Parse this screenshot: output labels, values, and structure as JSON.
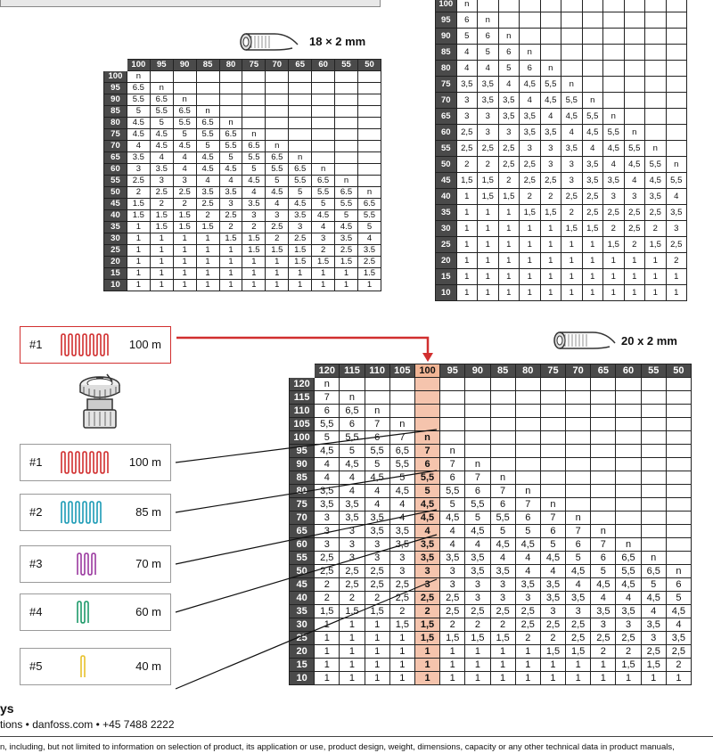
{
  "pipe_small": {
    "label": "18 × 2 mm"
  },
  "pipe_large": {
    "label": "20 x 2 mm"
  },
  "selected_loop": {
    "id": "#1",
    "length": "100 m",
    "color": "#d12f2f"
  },
  "loops": [
    {
      "id": "#1",
      "length": "100 m",
      "color": "#d12f2f"
    },
    {
      "id": "#2",
      "length": "85 m",
      "color": "#1c9bb5"
    },
    {
      "id": "#3",
      "length": "70 m",
      "color": "#9b3aa0"
    },
    {
      "id": "#4",
      "length": "60 m",
      "color": "#1e9a6a"
    },
    {
      "id": "#5",
      "length": "40 m",
      "color": "#e8c12c"
    }
  ],
  "table_a": {
    "header": [
      "",
      "100",
      "95",
      "90",
      "85",
      "80",
      "75",
      "70",
      "65",
      "60",
      "55",
      "50"
    ],
    "rows": [
      [
        "100",
        "n",
        "",
        "",
        "",
        "",
        "",
        "",
        "",
        "",
        "",
        ""
      ],
      [
        "95",
        "6.5",
        "n",
        "",
        "",
        "",
        "",
        "",
        "",
        "",
        "",
        ""
      ],
      [
        "90",
        "5.5",
        "6.5",
        "n",
        "",
        "",
        "",
        "",
        "",
        "",
        "",
        ""
      ],
      [
        "85",
        "5",
        "5.5",
        "6.5",
        "n",
        "",
        "",
        "",
        "",
        "",
        "",
        ""
      ],
      [
        "80",
        "4.5",
        "5",
        "5.5",
        "6.5",
        "n",
        "",
        "",
        "",
        "",
        "",
        ""
      ],
      [
        "75",
        "4.5",
        "4.5",
        "5",
        "5.5",
        "6.5",
        "n",
        "",
        "",
        "",
        "",
        ""
      ],
      [
        "70",
        "4",
        "4.5",
        "4.5",
        "5",
        "5.5",
        "6.5",
        "n",
        "",
        "",
        "",
        ""
      ],
      [
        "65",
        "3.5",
        "4",
        "4",
        "4.5",
        "5",
        "5.5",
        "6.5",
        "n",
        "",
        "",
        ""
      ],
      [
        "60",
        "3",
        "3.5",
        "4",
        "4.5",
        "4.5",
        "5",
        "5.5",
        "6.5",
        "n",
        "",
        ""
      ],
      [
        "55",
        "2.5",
        "3",
        "3",
        "4",
        "4",
        "4.5",
        "5",
        "5.5",
        "6.5",
        "n",
        ""
      ],
      [
        "50",
        "2",
        "2.5",
        "2.5",
        "3.5",
        "3.5",
        "4",
        "4.5",
        "5",
        "5.5",
        "6.5",
        "n"
      ],
      [
        "45",
        "1.5",
        "2",
        "2",
        "2.5",
        "3",
        "3.5",
        "4",
        "4.5",
        "5",
        "5.5",
        "6.5"
      ],
      [
        "40",
        "1.5",
        "1.5",
        "1.5",
        "2",
        "2.5",
        "3",
        "3",
        "3.5",
        "4.5",
        "5",
        "5.5"
      ],
      [
        "35",
        "1",
        "1.5",
        "1.5",
        "1.5",
        "2",
        "2",
        "2.5",
        "3",
        "4",
        "4.5",
        "5"
      ],
      [
        "30",
        "1",
        "1",
        "1",
        "1",
        "1.5",
        "1.5",
        "2",
        "2.5",
        "3",
        "3.5",
        "4"
      ],
      [
        "25",
        "1",
        "1",
        "1",
        "1",
        "1",
        "1.5",
        "1.5",
        "1.5",
        "2",
        "2.5",
        "3.5"
      ],
      [
        "20",
        "1",
        "1",
        "1",
        "1",
        "1",
        "1",
        "1",
        "1.5",
        "1.5",
        "1.5",
        "2.5"
      ],
      [
        "15",
        "1",
        "1",
        "1",
        "1",
        "1",
        "1",
        "1",
        "1",
        "1",
        "1",
        "1.5"
      ],
      [
        "10",
        "1",
        "1",
        "1",
        "1",
        "1",
        "1",
        "1",
        "1",
        "1",
        "1",
        "1"
      ]
    ]
  },
  "table_b": {
    "rows": [
      [
        "100",
        "n",
        "",
        "",
        "",
        "",
        "",
        "",
        "",
        "",
        "",
        ""
      ],
      [
        "95",
        "6",
        "n",
        "",
        "",
        "",
        "",
        "",
        "",
        "",
        "",
        ""
      ],
      [
        "90",
        "5",
        "6",
        "n",
        "",
        "",
        "",
        "",
        "",
        "",
        "",
        ""
      ],
      [
        "85",
        "4",
        "5",
        "6",
        "n",
        "",
        "",
        "",
        "",
        "",
        "",
        ""
      ],
      [
        "80",
        "4",
        "4",
        "5",
        "6",
        "n",
        "",
        "",
        "",
        "",
        "",
        ""
      ],
      [
        "75",
        "3,5",
        "3,5",
        "4",
        "4,5",
        "5,5",
        "n",
        "",
        "",
        "",
        "",
        ""
      ],
      [
        "70",
        "3",
        "3,5",
        "3,5",
        "4",
        "4,5",
        "5,5",
        "n",
        "",
        "",
        "",
        ""
      ],
      [
        "65",
        "3",
        "3",
        "3,5",
        "3,5",
        "4",
        "4,5",
        "5,5",
        "n",
        "",
        "",
        ""
      ],
      [
        "60",
        "2,5",
        "3",
        "3",
        "3,5",
        "3,5",
        "4",
        "4,5",
        "5,5",
        "n",
        "",
        ""
      ],
      [
        "55",
        "2,5",
        "2,5",
        "2,5",
        "3",
        "3",
        "3,5",
        "4",
        "4,5",
        "5,5",
        "n",
        ""
      ],
      [
        "50",
        "2",
        "2",
        "2,5",
        "2,5",
        "3",
        "3",
        "3,5",
        "4",
        "4,5",
        "5,5",
        "n"
      ],
      [
        "45",
        "1,5",
        "1,5",
        "2",
        "2,5",
        "2,5",
        "3",
        "3,5",
        "3,5",
        "4",
        "4,5",
        "5,5"
      ],
      [
        "40",
        "1",
        "1,5",
        "1,5",
        "2",
        "2",
        "2,5",
        "2,5",
        "3",
        "3",
        "3,5",
        "4"
      ],
      [
        "35",
        "1",
        "1",
        "1",
        "1,5",
        "1,5",
        "2",
        "2,5",
        "2,5",
        "2,5",
        "2,5",
        "3,5"
      ],
      [
        "30",
        "1",
        "1",
        "1",
        "1",
        "1",
        "1,5",
        "1,5",
        "2",
        "2,5",
        "2",
        "3"
      ],
      [
        "25",
        "1",
        "1",
        "1",
        "1",
        "1",
        "1",
        "1",
        "1,5",
        "2",
        "1,5",
        "2,5"
      ],
      [
        "20",
        "1",
        "1",
        "1",
        "1",
        "1",
        "1",
        "1",
        "1",
        "1",
        "1",
        "2"
      ],
      [
        "15",
        "1",
        "1",
        "1",
        "1",
        "1",
        "1",
        "1",
        "1",
        "1",
        "1",
        "1"
      ],
      [
        "10",
        "1",
        "1",
        "1",
        "1",
        "1",
        "1",
        "1",
        "1",
        "1",
        "1",
        "1"
      ]
    ]
  },
  "table_c": {
    "header": [
      "",
      "120",
      "115",
      "110",
      "105",
      "100",
      "95",
      "90",
      "85",
      "80",
      "75",
      "70",
      "65",
      "60",
      "55",
      "50"
    ],
    "highlight_column": "100",
    "rows": [
      [
        "120",
        "n",
        "",
        "",
        "",
        "",
        "",
        "",
        "",
        "",
        "",
        "",
        "",
        "",
        "",
        ""
      ],
      [
        "115",
        "7",
        "n",
        "",
        "",
        "",
        "",
        "",
        "",
        "",
        "",
        "",
        "",
        "",
        "",
        ""
      ],
      [
        "110",
        "6",
        "6,5",
        "n",
        "",
        "",
        "",
        "",
        "",
        "",
        "",
        "",
        "",
        "",
        "",
        ""
      ],
      [
        "105",
        "5,5",
        "6",
        "7",
        "n",
        "",
        "",
        "",
        "",
        "",
        "",
        "",
        "",
        "",
        "",
        ""
      ],
      [
        "100",
        "5",
        "5,5",
        "6",
        "7",
        "n",
        "",
        "",
        "",
        "",
        "",
        "",
        "",
        "",
        "",
        ""
      ],
      [
        "95",
        "4,5",
        "5",
        "5,5",
        "6,5",
        "7",
        "n",
        "",
        "",
        "",
        "",
        "",
        "",
        "",
        "",
        ""
      ],
      [
        "90",
        "4",
        "4,5",
        "5",
        "5,5",
        "6",
        "7",
        "n",
        "",
        "",
        "",
        "",
        "",
        "",
        "",
        ""
      ],
      [
        "85",
        "4",
        "4",
        "4,5",
        "5",
        "5,5",
        "6",
        "7",
        "n",
        "",
        "",
        "",
        "",
        "",
        "",
        ""
      ],
      [
        "80",
        "3,5",
        "4",
        "4",
        "4,5",
        "5",
        "5,5",
        "6",
        "7",
        "n",
        "",
        "",
        "",
        "",
        "",
        ""
      ],
      [
        "75",
        "3,5",
        "3,5",
        "4",
        "4",
        "4,5",
        "5",
        "5,5",
        "6",
        "7",
        "n",
        "",
        "",
        "",
        "",
        ""
      ],
      [
        "70",
        "3",
        "3,5",
        "3,5",
        "4",
        "4,5",
        "4,5",
        "5",
        "5,5",
        "6",
        "7",
        "n",
        "",
        "",
        "",
        ""
      ],
      [
        "65",
        "3",
        "3",
        "3,5",
        "3,5",
        "4",
        "4",
        "4,5",
        "5",
        "5",
        "6",
        "7",
        "n",
        "",
        "",
        ""
      ],
      [
        "60",
        "3",
        "3",
        "3",
        "3,5",
        "3,5",
        "4",
        "4",
        "4,5",
        "4,5",
        "5",
        "6",
        "7",
        "n",
        "",
        ""
      ],
      [
        "55",
        "2,5",
        "3",
        "3",
        "3",
        "3,5",
        "3,5",
        "3,5",
        "4",
        "4",
        "4,5",
        "5",
        "6",
        "6,5",
        "n",
        ""
      ],
      [
        "50",
        "2,5",
        "2,5",
        "2,5",
        "3",
        "3",
        "3",
        "3,5",
        "3,5",
        "4",
        "4",
        "4,5",
        "5",
        "5,5",
        "6,5",
        "n"
      ],
      [
        "45",
        "2",
        "2,5",
        "2,5",
        "2,5",
        "3",
        "3",
        "3",
        "3",
        "3,5",
        "3,5",
        "4",
        "4,5",
        "4,5",
        "5",
        "6"
      ],
      [
        "40",
        "2",
        "2",
        "2",
        "2,5",
        "2,5",
        "2,5",
        "3",
        "3",
        "3",
        "3,5",
        "3,5",
        "4",
        "4",
        "4,5",
        "5"
      ],
      [
        "35",
        "1,5",
        "1,5",
        "1,5",
        "2",
        "2",
        "2,5",
        "2,5",
        "2,5",
        "2,5",
        "3",
        "3",
        "3,5",
        "3,5",
        "4",
        "4,5"
      ],
      [
        "30",
        "1",
        "1",
        "1",
        "1,5",
        "1,5",
        "2",
        "2",
        "2",
        "2,5",
        "2,5",
        "2,5",
        "3",
        "3",
        "3,5",
        "4"
      ],
      [
        "25",
        "1",
        "1",
        "1",
        "1",
        "1,5",
        "1,5",
        "1,5",
        "1,5",
        "2",
        "2",
        "2,5",
        "2,5",
        "2,5",
        "3",
        "3,5"
      ],
      [
        "20",
        "1",
        "1",
        "1",
        "1",
        "1",
        "1",
        "1",
        "1",
        "1",
        "1,5",
        "1,5",
        "2",
        "2",
        "2,5",
        "2,5"
      ],
      [
        "15",
        "1",
        "1",
        "1",
        "1",
        "1",
        "1",
        "1",
        "1",
        "1",
        "1",
        "1",
        "1",
        "1,5",
        "1,5",
        "2"
      ],
      [
        "10",
        "1",
        "1",
        "1",
        "1",
        "1",
        "1",
        "1",
        "1",
        "1",
        "1",
        "1",
        "1",
        "1",
        "1",
        "1"
      ]
    ]
  },
  "footer": {
    "brand_fragment": "ys",
    "contact": "tions • danfoss.com • +45 7488 2222",
    "disclaimer": "n, including, but not limited to information on selection of product, its application or use, product design, weight, dimensions, capacity or any other technical data in product manuals,"
  },
  "colors": {
    "header_bg": "#4a4a4a",
    "highlight": "#f5c4ad",
    "arrow": "#d12f2f"
  }
}
